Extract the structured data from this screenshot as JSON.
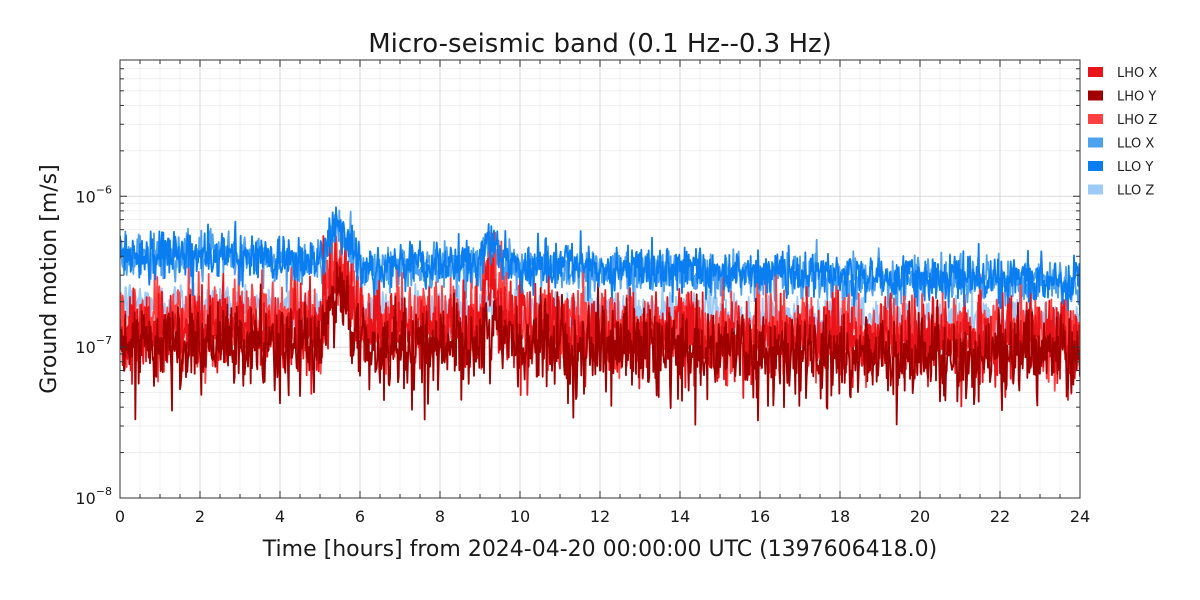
{
  "chart_data": {
    "type": "line",
    "title": "Micro-seismic band (0.1 Hz--0.3 Hz)",
    "xlabel": "Time [hours] from 2024-04-20 00:00:00 UTC (1397606418.0)",
    "ylabel": "Ground motion [m/s]",
    "xlim": [
      0,
      24
    ],
    "ylim": [
      1e-08,
      8e-06
    ],
    "yscale": "log",
    "grid": true,
    "legend_position": "outside-top-right",
    "x_ticks": [
      "0",
      "2",
      "4",
      "6",
      "8",
      "10",
      "12",
      "14",
      "16",
      "18",
      "20",
      "22",
      "24"
    ],
    "y_ticks": [
      {
        "value": 1e-08,
        "base": "10",
        "exp": "−8"
      },
      {
        "value": 1e-07,
        "base": "10",
        "exp": "−7"
      },
      {
        "value": 1e-06,
        "base": "10",
        "exp": "−6"
      }
    ],
    "x": [
      0,
      1,
      2,
      3,
      4,
      5,
      5.4,
      6,
      7,
      8,
      9,
      9.1,
      10,
      11,
      12,
      13,
      14,
      15,
      16,
      17,
      18,
      19,
      20,
      21,
      22,
      23,
      24
    ],
    "series": [
      {
        "name": "LHO X",
        "color": "#e8141a",
        "values": [
          1.3e-07,
          1.35e-07,
          1.3e-07,
          1.35e-07,
          1.3e-07,
          1.4e-07,
          3.5e-07,
          1.35e-07,
          1.3e-07,
          1.3e-07,
          1.3e-07,
          2.8e-07,
          1.3e-07,
          1.2e-07,
          1.2e-07,
          1.2e-07,
          1.2e-07,
          1.15e-07,
          1.1e-07,
          1.1e-07,
          1.1e-07,
          1.1e-07,
          1.1e-07,
          1.1e-07,
          1.1e-07,
          1.1e-07,
          1.1e-07
        ]
      },
      {
        "name": "LHO Y",
        "color": "#a00000",
        "values": [
          1e-07,
          1e-07,
          1e-07,
          1e-07,
          1e-07,
          1e-07,
          2.6e-07,
          1e-07,
          1e-07,
          1e-07,
          1e-07,
          1.4e-07,
          1e-07,
          1e-07,
          1e-07,
          1e-07,
          9.5e-08,
          9.5e-08,
          9e-08,
          9e-08,
          8.5e-08,
          8.5e-08,
          9e-08,
          8.5e-08,
          9e-08,
          9e-08,
          9e-08
        ]
      },
      {
        "name": "LHO Z",
        "color": "#ff4040",
        "values": [
          1.4e-07,
          1.5e-07,
          1.5e-07,
          1.5e-07,
          1.5e-07,
          1.5e-07,
          4.2e-07,
          1.5e-07,
          1.45e-07,
          1.45e-07,
          1.4e-07,
          3.4e-07,
          1.4e-07,
          1.35e-07,
          1.35e-07,
          1.3e-07,
          1.3e-07,
          1.3e-07,
          1.25e-07,
          1.25e-07,
          1.2e-07,
          1.2e-07,
          1.25e-07,
          1.2e-07,
          1.25e-07,
          1.2e-07,
          1.25e-07
        ]
      },
      {
        "name": "LLO X",
        "color": "#4da2f0",
        "values": [
          4e-07,
          4.1e-07,
          4e-07,
          4e-07,
          3.7e-07,
          3.5e-07,
          6.5e-07,
          3.4e-07,
          3.4e-07,
          3.4e-07,
          3.4e-07,
          4.6e-07,
          3.3e-07,
          3.3e-07,
          3.2e-07,
          3.2e-07,
          3.3e-07,
          3.1e-07,
          3e-07,
          3e-07,
          2.9e-07,
          2.9e-07,
          2.8e-07,
          2.8e-07,
          2.7e-07,
          2.7e-07,
          2.6e-07
        ]
      },
      {
        "name": "LLO Y",
        "color": "#0a7ef0",
        "values": [
          4.1e-07,
          4.2e-07,
          4.1e-07,
          4e-07,
          3.8e-07,
          3.6e-07,
          6.9e-07,
          3.5e-07,
          3.5e-07,
          3.5e-07,
          3.5e-07,
          4.8e-07,
          3.4e-07,
          3.4e-07,
          3.3e-07,
          3.3e-07,
          3.4e-07,
          3.2e-07,
          3.1e-07,
          3.1e-07,
          3e-07,
          2.9e-07,
          2.9e-07,
          2.9e-07,
          2.8e-07,
          2.8e-07,
          2.7e-07
        ]
      },
      {
        "name": "LLO Z",
        "color": "#9ccbf7",
        "values": [
          2e-07,
          1.95e-07,
          1.9e-07,
          1.9e-07,
          1.85e-07,
          1.8e-07,
          3e-07,
          1.75e-07,
          1.75e-07,
          1.7e-07,
          1.7e-07,
          2.2e-07,
          1.7e-07,
          1.7e-07,
          1.65e-07,
          1.65e-07,
          1.7e-07,
          1.6e-07,
          1.55e-07,
          1.55e-07,
          1.5e-07,
          1.5e-07,
          1.5e-07,
          1.5e-07,
          1.45e-07,
          1.45e-07,
          1.4e-07
        ]
      }
    ]
  }
}
